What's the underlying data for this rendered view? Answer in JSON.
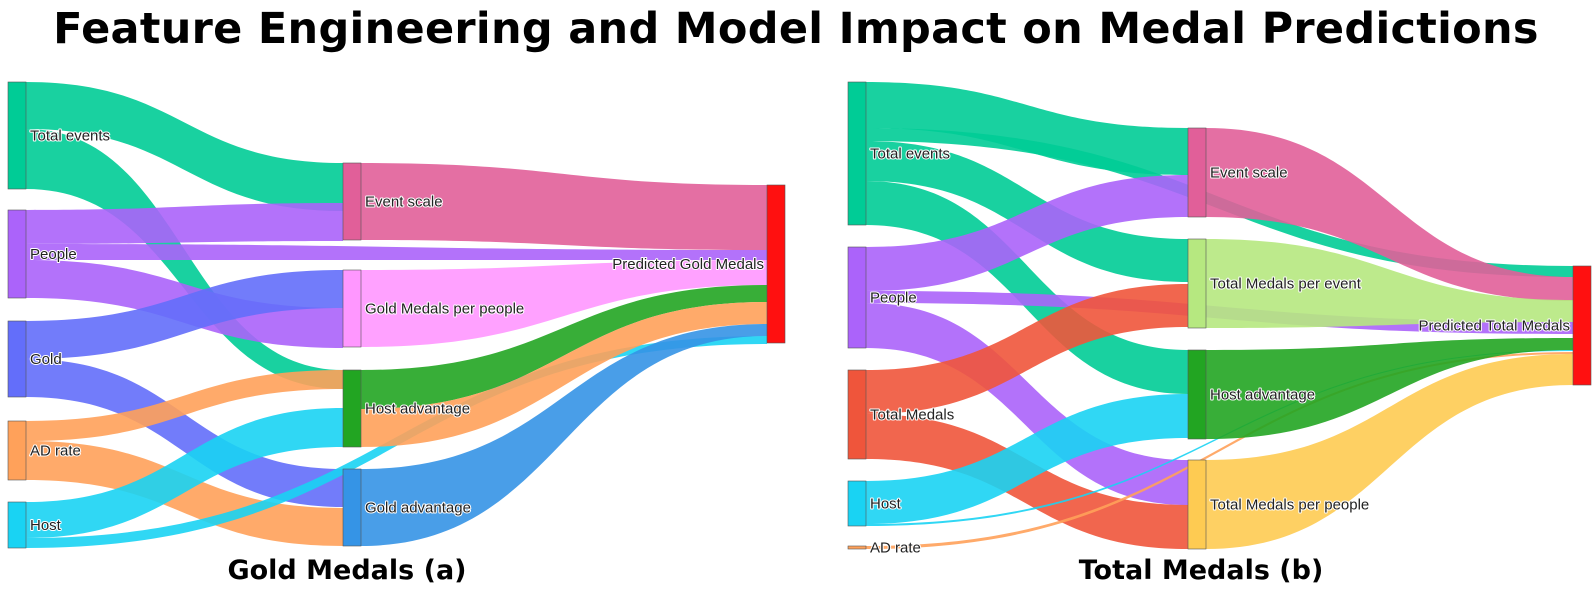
{
  "title": "Feature Engineering and Model Impact on Medal Predictions",
  "diagrams": [
    {
      "subtitle": "Gold Medals (a)",
      "nodes": [
        {
          "id": "te",
          "label": "Total events",
          "color": "#00CC96"
        },
        {
          "id": "pe",
          "label": "People",
          "color": "#AB63FA"
        },
        {
          "id": "go",
          "label": "Gold",
          "color": "#636EFA"
        },
        {
          "id": "ad",
          "label": "AD rate",
          "color": "#FFA15A"
        },
        {
          "id": "ho",
          "label": "Host",
          "color": "#19D3F3"
        },
        {
          "id": "es",
          "label": "Event scale",
          "color": "#E15F99"
        },
        {
          "id": "gp",
          "label": "Gold Medals per people",
          "color": "#FF97FF"
        },
        {
          "id": "ha",
          "label": "Host advantage",
          "color": "#22A522"
        },
        {
          "id": "ga",
          "label": "Gold advantage",
          "color": "#3594E6"
        },
        {
          "id": "pg",
          "label": "Predicted Gold Medals",
          "color": "#FF1010"
        }
      ],
      "links": [
        {
          "source": "te",
          "target": "es",
          "color": "#00CC96"
        },
        {
          "source": "te",
          "target": "ha",
          "color": "#00CC96"
        },
        {
          "source": "pe",
          "target": "es",
          "color": "#AB63FA"
        },
        {
          "source": "pe",
          "target": "pg",
          "color": "#AB63FA"
        },
        {
          "source": "pe",
          "target": "gp",
          "color": "#AB63FA"
        },
        {
          "source": "go",
          "target": "gp",
          "color": "#636EFA"
        },
        {
          "source": "go",
          "target": "ga",
          "color": "#636EFA"
        },
        {
          "source": "ad",
          "target": "ha",
          "color": "#FFA15A"
        },
        {
          "source": "ad",
          "target": "ga",
          "color": "#FFA15A"
        },
        {
          "source": "ho",
          "target": "ha",
          "color": "#19D3F3"
        },
        {
          "source": "ho",
          "target": "pg",
          "color": "#19D3F3"
        },
        {
          "source": "es",
          "target": "pg",
          "color": "#E15F99"
        },
        {
          "source": "gp",
          "target": "pg",
          "color": "#FF97FF"
        },
        {
          "source": "ha",
          "target": "pg",
          "color": "#22A522"
        },
        {
          "source": "ha",
          "target": "pg",
          "color": "#FFA15A"
        },
        {
          "source": "ga",
          "target": "pg",
          "color": "#3594E6"
        }
      ]
    },
    {
      "subtitle": "Total Medals (b)",
      "nodes": [
        {
          "id": "te",
          "label": "Total events",
          "color": "#00CC96"
        },
        {
          "id": "pe",
          "label": "People",
          "color": "#AB63FA"
        },
        {
          "id": "tm",
          "label": "Total Medals",
          "color": "#EF553B"
        },
        {
          "id": "ho",
          "label": "Host",
          "color": "#19D3F3"
        },
        {
          "id": "ad",
          "label": "AD rate",
          "color": "#FFA15A"
        },
        {
          "id": "es",
          "label": "Event scale",
          "color": "#E15F99"
        },
        {
          "id": "tme",
          "label": "Total Medals per event",
          "color": "#B6E880"
        },
        {
          "id": "ha",
          "label": "Host advantage",
          "color": "#22A522"
        },
        {
          "id": "tmp",
          "label": "Total Medals per people",
          "color": "#FECB52"
        },
        {
          "id": "pt",
          "label": "Predicted Total Medals",
          "color": "#FF1010"
        }
      ],
      "links": [
        {
          "source": "te",
          "target": "es",
          "color": "#00CC96"
        },
        {
          "source": "te",
          "target": "pt",
          "color": "#00CC96"
        },
        {
          "source": "te",
          "target": "tme",
          "color": "#00CC96"
        },
        {
          "source": "te",
          "target": "ha",
          "color": "#00CC96"
        },
        {
          "source": "pe",
          "target": "es",
          "color": "#AB63FA"
        },
        {
          "source": "pe",
          "target": "pt",
          "color": "#AB63FA"
        },
        {
          "source": "pe",
          "target": "tmp",
          "color": "#AB63FA"
        },
        {
          "source": "tm",
          "target": "tme",
          "color": "#EF553B"
        },
        {
          "source": "tm",
          "target": "tmp",
          "color": "#EF553B"
        },
        {
          "source": "ho",
          "target": "ha",
          "color": "#19D3F3"
        },
        {
          "source": "ho",
          "target": "pt",
          "color": "#19D3F3"
        },
        {
          "source": "ad",
          "target": "pt",
          "color": "#FFA15A"
        },
        {
          "source": "es",
          "target": "pt",
          "color": "#E15F99"
        },
        {
          "source": "tme",
          "target": "pt",
          "color": "#B6E880"
        },
        {
          "source": "ha",
          "target": "pt",
          "color": "#22A522"
        },
        {
          "source": "tmp",
          "target": "pt",
          "color": "#FECB52"
        }
      ]
    }
  ]
}
